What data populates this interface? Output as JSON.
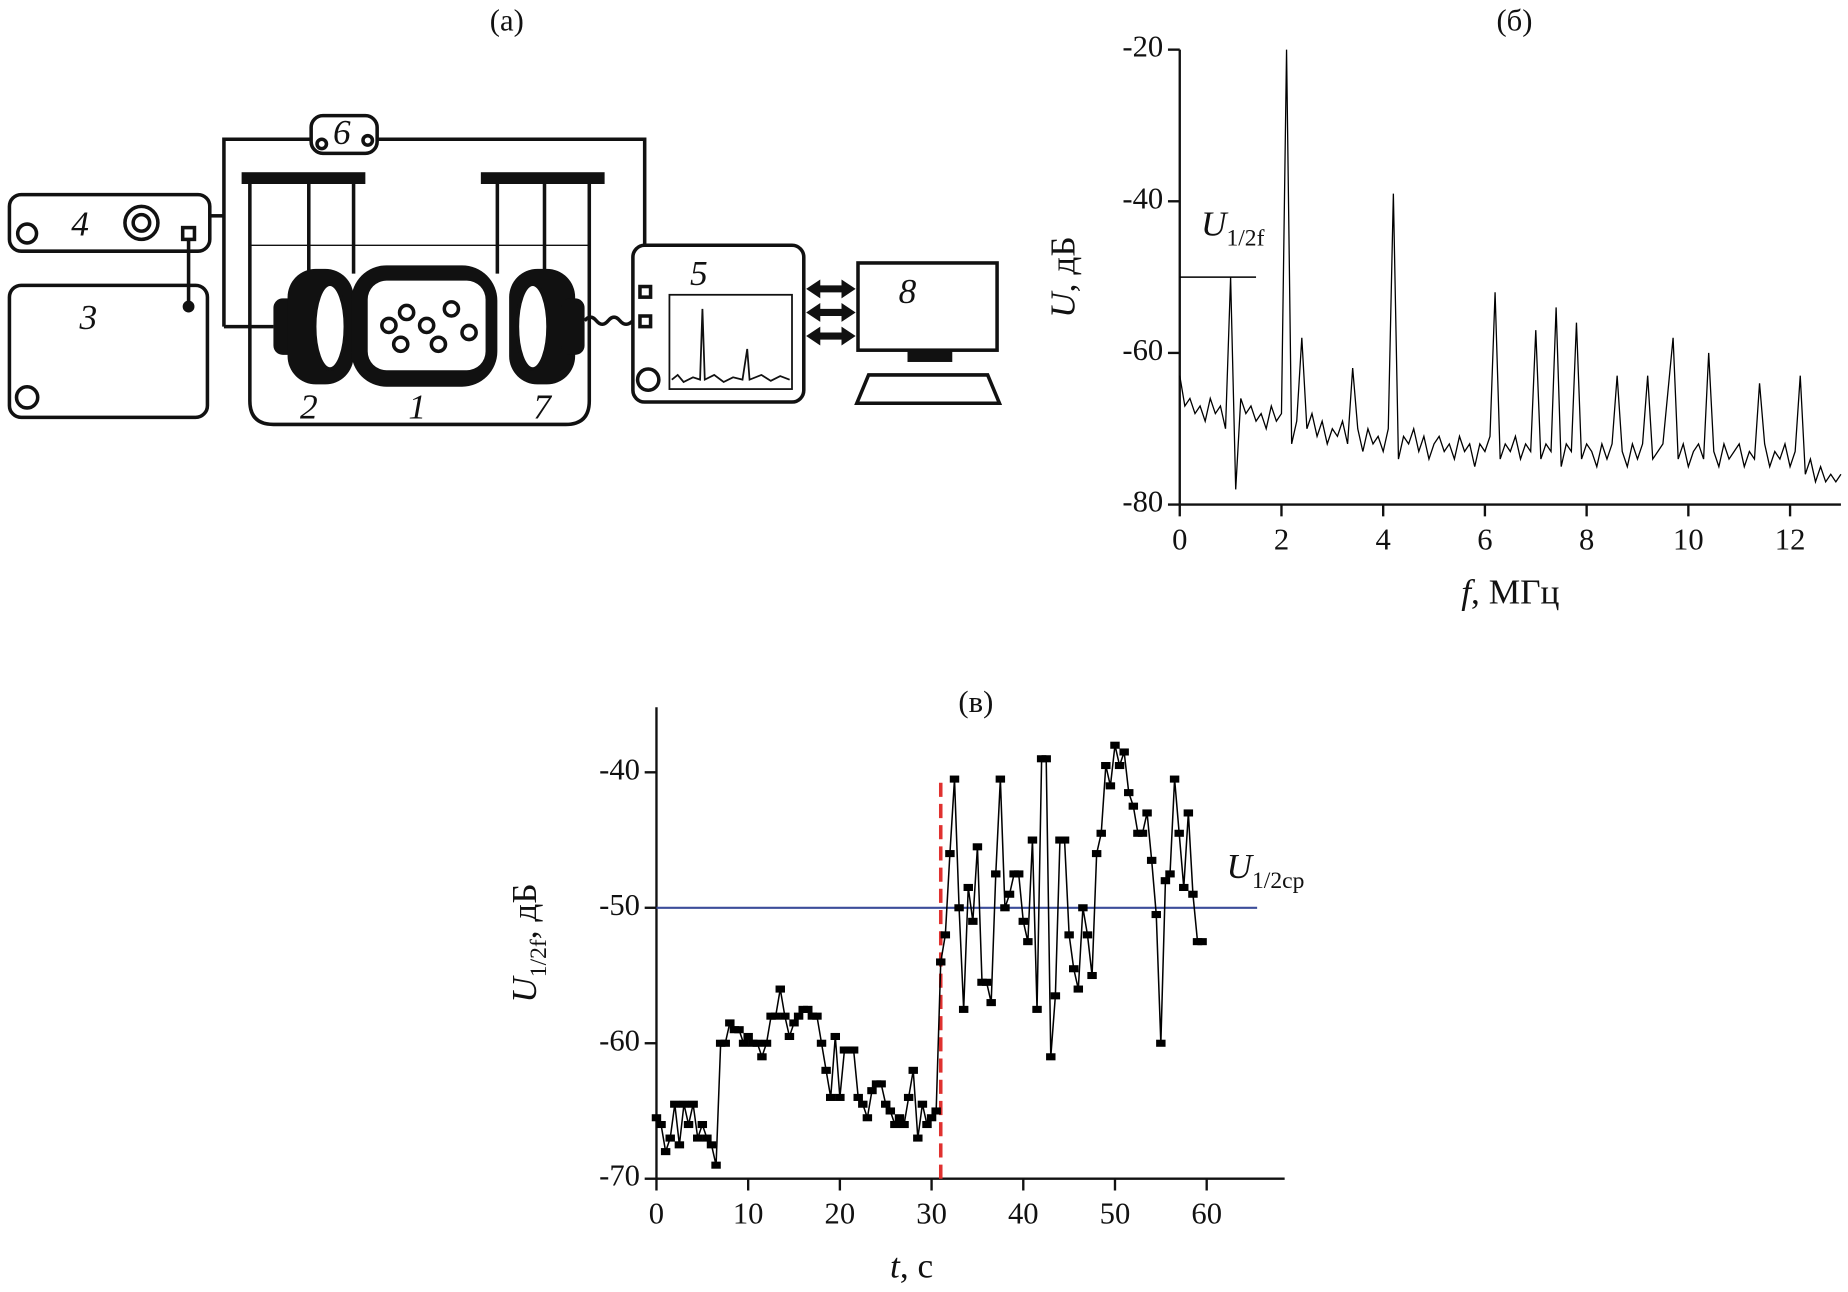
{
  "diagram": {
    "title": "(а)",
    "labels": [
      "1",
      "2",
      "3",
      "4",
      "5",
      "6",
      "7",
      "8"
    ]
  },
  "chart_data": [
    {
      "type": "line",
      "title": "(б)",
      "x": [
        0,
        0.1,
        0.2,
        0.3,
        0.4,
        0.5,
        0.6,
        0.7,
        0.8,
        0.9,
        1,
        1.1,
        1.2,
        1.3,
        1.4,
        1.5,
        1.6,
        1.7,
        1.8,
        1.9,
        2,
        2.1,
        2.2,
        2.3,
        2.4,
        2.5,
        2.6,
        2.7,
        2.8,
        2.9,
        3,
        3.1,
        3.2,
        3.3,
        3.4,
        3.5,
        3.6,
        3.7,
        3.8,
        3.9,
        4,
        4.1,
        4.2,
        4.3,
        4.4,
        4.5,
        4.6,
        4.7,
        4.8,
        4.9,
        5,
        5.1,
        5.2,
        5.3,
        5.4,
        5.5,
        5.6,
        5.7,
        5.8,
        5.9,
        6,
        6.1,
        6.2,
        6.3,
        6.4,
        6.5,
        6.6,
        6.7,
        6.8,
        6.9,
        7,
        7.1,
        7.2,
        7.3,
        7.4,
        7.5,
        7.6,
        7.7,
        7.8,
        7.9,
        8,
        8.1,
        8.2,
        8.3,
        8.4,
        8.5,
        8.6,
        8.7,
        8.8,
        8.9,
        9,
        9.1,
        9.2,
        9.3,
        9.4,
        9.5,
        9.6,
        9.7,
        9.8,
        9.9,
        10,
        10.1,
        10.2,
        10.3,
        10.4,
        10.5,
        10.6,
        10.7,
        10.8,
        10.9,
        11,
        11.1,
        11.2,
        11.3,
        11.4,
        11.5,
        11.6,
        11.7,
        11.8,
        11.9,
        12,
        12.1,
        12.2,
        12.3,
        12.4,
        12.5,
        12.6,
        12.7,
        12.8,
        12.9,
        13
      ],
      "values": [
        -63,
        -67,
        -66,
        -68,
        -67,
        -69,
        -66,
        -68,
        -67,
        -70,
        -50,
        -78,
        -66,
        -68,
        -67,
        -69,
        -68,
        -70,
        -67,
        -69,
        -68,
        -20,
        -72,
        -69,
        -58,
        -70,
        -68,
        -71,
        -69,
        -72,
        -70,
        -71,
        -69,
        -72,
        -62,
        -70,
        -73,
        -70,
        -72,
        -71,
        -73,
        -70,
        -39,
        -74,
        -71,
        -72,
        -70,
        -73,
        -71,
        -74,
        -72,
        -71,
        -73,
        -72,
        -74,
        -71,
        -73,
        -72,
        -75,
        -72,
        -73,
        -71,
        -52,
        -74,
        -72,
        -73,
        -71,
        -74,
        -72,
        -73,
        -57,
        -74,
        -72,
        -73,
        -54,
        -75,
        -72,
        -73,
        -56,
        -74,
        -72,
        -73,
        -75,
        -72,
        -74,
        -72,
        -63,
        -73,
        -75,
        -72,
        -74,
        -72,
        -63,
        -74,
        -73,
        -72,
        -65,
        -58,
        -74,
        -72,
        -75,
        -73,
        -72,
        -74,
        -60,
        -73,
        -75,
        -72,
        -74,
        -73,
        -72,
        -75,
        -73,
        -74,
        -64,
        -72,
        -75,
        -73,
        -74,
        -72,
        -75,
        -73,
        -63,
        -76,
        -74,
        -77,
        -75,
        -77,
        -76,
        -77,
        -76
      ],
      "color": "#000000",
      "xlim": [
        0,
        13
      ],
      "ylim": [
        -80,
        -20
      ],
      "xticks": [
        0,
        2,
        4,
        6,
        8,
        10,
        12
      ],
      "yticks": [
        -80,
        -60,
        -40,
        -20
      ],
      "xlabel": {
        "symbol": "f",
        "unit": ", МГц"
      },
      "ylabel": {
        "symbol": "U",
        "unit": ", дБ"
      },
      "annotations": [
        {
          "symbol": "U",
          "subscript": "1/2f",
          "y": -50,
          "x": [
            0,
            1.5
          ],
          "color": "#000000"
        }
      ]
    },
    {
      "type": "line",
      "title": "(в)",
      "markers": true,
      "x": [
        0,
        0.5,
        1,
        1.5,
        2,
        2.5,
        3,
        3.5,
        4,
        4.5,
        5,
        5.5,
        6,
        6.5,
        7,
        7.5,
        8,
        8.5,
        9,
        9.5,
        10,
        10.5,
        11,
        11.5,
        12,
        12.5,
        13,
        13.5,
        14,
        14.5,
        15,
        15.5,
        16,
        16.5,
        17,
        17.5,
        18,
        18.5,
        19,
        19.5,
        20,
        20.5,
        21,
        21.5,
        22,
        22.5,
        23,
        23.5,
        24,
        24.5,
        25,
        25.5,
        26,
        26.5,
        27,
        27.5,
        28,
        28.5,
        29,
        29.5,
        30,
        30.5,
        31,
        31.5,
        32,
        32.5,
        33,
        33.5,
        34,
        34.5,
        35,
        35.5,
        36,
        36.5,
        37,
        37.5,
        38,
        38.5,
        39,
        39.5,
        40,
        40.5,
        41,
        41.5,
        42,
        42.5,
        43,
        43.5,
        44,
        44.5,
        45,
        45.5,
        46,
        46.5,
        47,
        47.5,
        48,
        48.5,
        49,
        49.5,
        50,
        50.5,
        51,
        51.5,
        52,
        52.5,
        53,
        53.5,
        54,
        54.5,
        55,
        55.5,
        56,
        56.5,
        57,
        57.5,
        58,
        58.5,
        59,
        59.5
      ],
      "values": [
        -65.5,
        -66,
        -68,
        -67,
        -64.5,
        -67.5,
        -64.5,
        -66,
        -64.5,
        -67,
        -66,
        -67,
        -67.5,
        -69,
        -60,
        -60,
        -58.5,
        -59,
        -59,
        -60,
        -59.5,
        -60,
        -60,
        -61,
        -60,
        -58,
        -58,
        -56,
        -58,
        -59.5,
        -58.5,
        -58,
        -57.5,
        -57.5,
        -58,
        -58,
        -60,
        -62,
        -64,
        -59.5,
        -64,
        -60.5,
        -60.5,
        -60.5,
        -64,
        -64.5,
        -65.5,
        -63.5,
        -63,
        -63,
        -64.5,
        -65,
        -66,
        -65.5,
        -66,
        -64,
        -62,
        -67,
        -64.5,
        -66,
        -65.5,
        -65,
        -54,
        -52,
        -46,
        -40.5,
        -50,
        -57.5,
        -48.5,
        -51,
        -45.5,
        -55.5,
        -55.5,
        -57,
        -47.5,
        -40.5,
        -50,
        -49,
        -47.5,
        -47.5,
        -51,
        -52.5,
        -45,
        -57.5,
        -39,
        -39,
        -61,
        -56.5,
        -45,
        -45,
        -52,
        -54.5,
        -56,
        -50,
        -52,
        -55,
        -46,
        -44.5,
        -39.5,
        -41,
        -38,
        -39.5,
        -38.5,
        -41.5,
        -42.5,
        -44.5,
        -44.5,
        -43,
        -46.5,
        -50.5,
        -60,
        -48,
        -47.5,
        -40.5,
        -44.5,
        -48.5,
        -43,
        -49,
        -52.5,
        -52.5
      ],
      "color": "#000000",
      "xlim": [
        0,
        68.5
      ],
      "ylim": [
        -70,
        -35.2
      ],
      "xticks": [
        0,
        10,
        20,
        30,
        40,
        50,
        60
      ],
      "yticks": [
        -70,
        -60,
        -50,
        -40
      ],
      "xlabel": {
        "symbol": "t",
        "unit": ", с"
      },
      "ylabel": {
        "symbol": "U",
        "subscript": "1/2f",
        "unit": ", дБ"
      },
      "annotations": [
        {
          "symbol": "U",
          "subscript": "1/2ср",
          "y": -50,
          "x": [
            0,
            65.5
          ],
          "color": "#3c4d9a"
        }
      ],
      "vline": {
        "x": 31,
        "y": [
          -70,
          -40.3
        ],
        "color": "#e0312f"
      }
    }
  ]
}
